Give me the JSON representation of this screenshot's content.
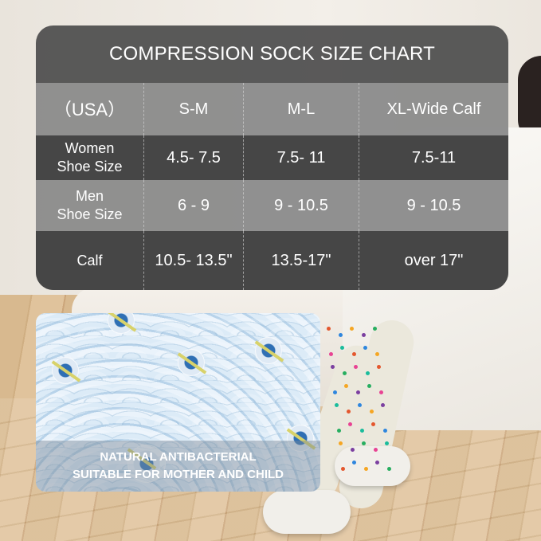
{
  "chart": {
    "title": "COMPRESSION SOCK SIZE CHART",
    "header": [
      "（USA）",
      "S-M",
      "M-L",
      "XL-Wide Calf"
    ],
    "rows": [
      {
        "label_line1": "Women",
        "label_line2": "Shoe Size",
        "values": [
          "4.5- 7.5",
          "7.5- 11",
          "7.5-11"
        ]
      },
      {
        "label_line1": "Men",
        "label_line2": "Shoe Size",
        "values": [
          "6 - 9",
          "9 - 10.5",
          "9 - 10.5"
        ]
      },
      {
        "label_line1": "Calf",
        "label_line2": "",
        "values": [
          "10.5- 13.5\"",
          "13.5-17\"",
          "over 17\""
        ]
      }
    ]
  },
  "promo": {
    "line1": "NATURAL ANTIBACTERIAL",
    "line2": "SUITABLE FOR MOTHER AND CHILD",
    "icon": "antibacterial-germ-icon"
  }
}
